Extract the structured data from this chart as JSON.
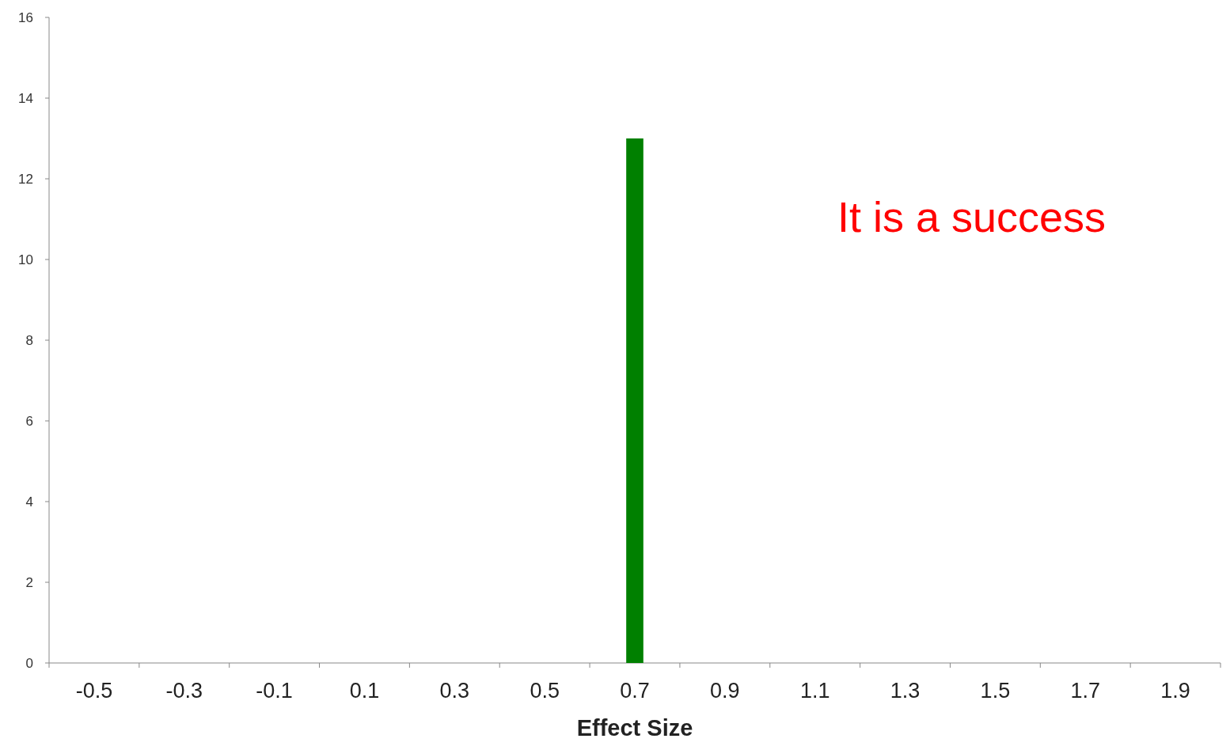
{
  "chart_data": {
    "type": "bar",
    "xlabel": "Effect Size",
    "categories": [
      "-0.5",
      "-0.3",
      "-0.1",
      "0.1",
      "0.3",
      "0.5",
      "0.7",
      "0.9",
      "1.1",
      "1.3",
      "1.5",
      "1.7",
      "1.9"
    ],
    "values": [
      0,
      0,
      0,
      0,
      0,
      0,
      13,
      0,
      0,
      0,
      0,
      0,
      0
    ],
    "color": "#008000",
    "ylim": [
      0,
      16
    ],
    "yticks": [
      0,
      2,
      4,
      6,
      8,
      10,
      12,
      14,
      16
    ],
    "grid": false,
    "annotations": [
      "It is a success"
    ]
  }
}
